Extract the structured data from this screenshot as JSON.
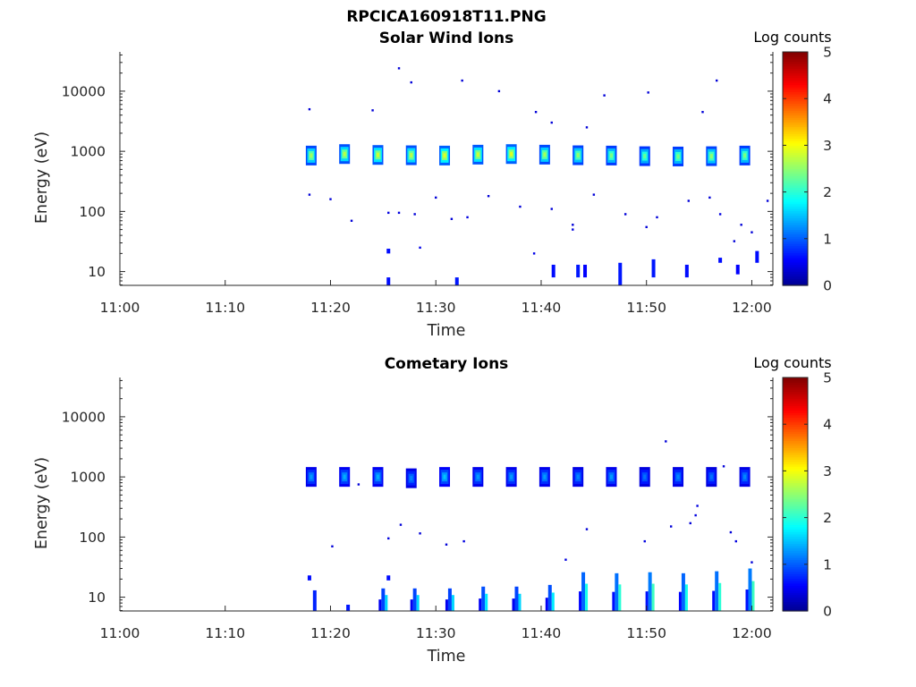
{
  "figure_title": "RPCICA160918T11.PNG",
  "colormap": [
    "#00008f",
    "#0000ff",
    "#00ffff",
    "#ffff00",
    "#ff0000",
    "#800000"
  ],
  "chart_data": [
    {
      "type": "heatmap",
      "title": "Solar Wind Ions",
      "xlabel": "Time",
      "ylabel": "Energy (eV)",
      "yscale": "log",
      "ylim": [
        5.9,
        45000
      ],
      "xlim": [
        "11:00",
        "12:02"
      ],
      "x_ticks": [
        "11:00",
        "11:10",
        "11:20",
        "11:30",
        "11:40",
        "11:50",
        "12:00"
      ],
      "y_ticks": [
        10,
        100,
        1000,
        10000
      ],
      "y_tick_labels": [
        "10",
        "100",
        "1000",
        "10000"
      ],
      "colorbar": {
        "label": "Log counts",
        "range": [
          0,
          5
        ],
        "ticks": [
          "0",
          "1",
          "2",
          "3",
          "4",
          "5"
        ]
      },
      "peak_blobs": [
        {
          "t": "11:18:10",
          "e": 850,
          "v": 2.6
        },
        {
          "t": "11:21:20",
          "e": 900,
          "v": 2.7
        },
        {
          "t": "11:24:30",
          "e": 870,
          "v": 2.8
        },
        {
          "t": "11:27:40",
          "e": 860,
          "v": 2.7
        },
        {
          "t": "11:30:50",
          "e": 850,
          "v": 2.9
        },
        {
          "t": "11:34:00",
          "e": 880,
          "v": 2.8
        },
        {
          "t": "11:37:10",
          "e": 900,
          "v": 2.9
        },
        {
          "t": "11:40:20",
          "e": 880,
          "v": 2.6
        },
        {
          "t": "11:43:30",
          "e": 860,
          "v": 2.5
        },
        {
          "t": "11:46:40",
          "e": 850,
          "v": 2.4
        },
        {
          "t": "11:49:50",
          "e": 830,
          "v": 2.3
        },
        {
          "t": "11:53:00",
          "e": 820,
          "v": 2.4
        },
        {
          "t": "11:56:10",
          "e": 830,
          "v": 2.5
        },
        {
          "t": "11:59:20",
          "e": 850,
          "v": 2.4
        }
      ],
      "low_energy_bars": [
        {
          "t": "11:25:30",
          "e1": 6,
          "e2": 8,
          "v": 1.1
        },
        {
          "t": "11:25:30",
          "e1": 20,
          "e2": 24,
          "v": 1.1
        },
        {
          "t": "11:32:00",
          "e1": 6,
          "e2": 8,
          "v": 1.2
        },
        {
          "t": "11:41:10",
          "e1": 8,
          "e2": 13,
          "v": 1.1
        },
        {
          "t": "11:43:30",
          "e1": 8,
          "e2": 13,
          "v": 1.2
        },
        {
          "t": "11:44:10",
          "e1": 8,
          "e2": 13,
          "v": 1.0
        },
        {
          "t": "11:47:30",
          "e1": 6,
          "e2": 14,
          "v": 1.2
        },
        {
          "t": "11:50:40",
          "e1": 8,
          "e2": 16,
          "v": 1.2
        },
        {
          "t": "11:53:50",
          "e1": 8,
          "e2": 13,
          "v": 1.1
        },
        {
          "t": "11:57:00",
          "e1": 14,
          "e2": 17,
          "v": 1.1
        },
        {
          "t": "11:58:40",
          "e1": 9,
          "e2": 13,
          "v": 1.0
        },
        {
          "t": "12:00:30",
          "e1": 14,
          "e2": 22,
          "v": 1.1
        }
      ],
      "scatter": [
        {
          "t": "11:26:30",
          "e": 24000,
          "v": 0.9
        },
        {
          "t": "11:27:40",
          "e": 14000,
          "v": 0.9
        },
        {
          "t": "11:32:30",
          "e": 15000,
          "v": 0.9
        },
        {
          "t": "11:36:00",
          "e": 10000,
          "v": 0.9
        },
        {
          "t": "11:39:30",
          "e": 4500,
          "v": 0.9
        },
        {
          "t": "11:46:00",
          "e": 8500,
          "v": 0.9
        },
        {
          "t": "11:50:10",
          "e": 9500,
          "v": 0.9
        },
        {
          "t": "11:55:20",
          "e": 4500,
          "v": 0.9
        },
        {
          "t": "11:56:40",
          "e": 15000,
          "v": 0.9
        },
        {
          "t": "11:18:00",
          "e": 5000,
          "v": 0.9
        },
        {
          "t": "11:18:00",
          "e": 190,
          "v": 0.9
        },
        {
          "t": "11:20:00",
          "e": 160,
          "v": 0.9
        },
        {
          "t": "11:22:00",
          "e": 70,
          "v": 0.9
        },
        {
          "t": "11:24:00",
          "e": 4800,
          "v": 0.9
        },
        {
          "t": "11:25:30",
          "e": 95,
          "v": 1.0
        },
        {
          "t": "11:26:30",
          "e": 95,
          "v": 1.0
        },
        {
          "t": "11:28:00",
          "e": 90,
          "v": 0.9
        },
        {
          "t": "11:30:00",
          "e": 170,
          "v": 0.9
        },
        {
          "t": "11:31:30",
          "e": 75,
          "v": 0.9
        },
        {
          "t": "11:33:00",
          "e": 80,
          "v": 1.0
        },
        {
          "t": "11:35:00",
          "e": 180,
          "v": 0.9
        },
        {
          "t": "11:38:00",
          "e": 120,
          "v": 0.9
        },
        {
          "t": "11:41:00",
          "e": 110,
          "v": 0.9
        },
        {
          "t": "11:43:00",
          "e": 50,
          "v": 1.0
        },
        {
          "t": "11:43:00",
          "e": 60,
          "v": 0.9
        },
        {
          "t": "11:45:00",
          "e": 190,
          "v": 0.9
        },
        {
          "t": "11:48:00",
          "e": 90,
          "v": 0.9
        },
        {
          "t": "11:50:00",
          "e": 55,
          "v": 0.9
        },
        {
          "t": "11:51:00",
          "e": 80,
          "v": 0.9
        },
        {
          "t": "11:54:00",
          "e": 150,
          "v": 0.9
        },
        {
          "t": "11:56:00",
          "e": 170,
          "v": 0.9
        },
        {
          "t": "11:57:00",
          "e": 90,
          "v": 1.0
        },
        {
          "t": "11:59:00",
          "e": 60,
          "v": 0.9
        },
        {
          "t": "12:00:00",
          "e": 45,
          "v": 0.9
        },
        {
          "t": "11:58:20",
          "e": 32,
          "v": 0.9
        },
        {
          "t": "12:01:30",
          "e": 150,
          "v": 0.9
        },
        {
          "t": "11:28:30",
          "e": 25,
          "v": 1.1
        },
        {
          "t": "11:39:20",
          "e": 20,
          "v": 1.1
        },
        {
          "t": "11:44:20",
          "e": 2500,
          "v": 0.9
        },
        {
          "t": "11:41:00",
          "e": 3000,
          "v": 0.9
        }
      ]
    },
    {
      "type": "heatmap",
      "title": "Cometary Ions",
      "xlabel": "Time",
      "ylabel": "Energy (eV)",
      "yscale": "log",
      "ylim": [
        5.9,
        45000
      ],
      "xlim": [
        "11:00",
        "12:02"
      ],
      "x_ticks": [
        "11:00",
        "11:10",
        "11:20",
        "11:30",
        "11:40",
        "11:50",
        "12:00"
      ],
      "y_ticks": [
        10,
        100,
        1000,
        10000
      ],
      "y_tick_labels": [
        "10",
        "100",
        "1000",
        "10000"
      ],
      "colorbar": {
        "label": "Log counts",
        "range": [
          0,
          5
        ],
        "ticks": [
          "0",
          "1",
          "2",
          "3",
          "4",
          "5"
        ]
      },
      "peak_blobs": [
        {
          "t": "11:18:10",
          "e": 1000,
          "v": 1.3
        },
        {
          "t": "11:21:20",
          "e": 1000,
          "v": 1.4
        },
        {
          "t": "11:24:30",
          "e": 1000,
          "v": 1.4
        },
        {
          "t": "11:27:40",
          "e": 950,
          "v": 1.2
        },
        {
          "t": "11:30:50",
          "e": 1000,
          "v": 1.5
        },
        {
          "t": "11:34:00",
          "e": 1000,
          "v": 1.3
        },
        {
          "t": "11:37:10",
          "e": 1000,
          "v": 1.3
        },
        {
          "t": "11:40:20",
          "e": 1000,
          "v": 1.3
        },
        {
          "t": "11:43:30",
          "e": 1000,
          "v": 1.2
        },
        {
          "t": "11:46:40",
          "e": 1000,
          "v": 1.3
        },
        {
          "t": "11:49:50",
          "e": 1000,
          "v": 1.1
        },
        {
          "t": "11:53:00",
          "e": 1000,
          "v": 1.2
        },
        {
          "t": "11:56:10",
          "e": 1000,
          "v": 1.1
        },
        {
          "t": "11:59:20",
          "e": 1000,
          "v": 1.2
        }
      ],
      "low_energy_bars": [
        {
          "t": "11:18:00",
          "e1": 19,
          "e2": 23,
          "v": 1.1
        },
        {
          "t": "11:18:30",
          "e1": 6,
          "e2": 13,
          "v": 1.3
        },
        {
          "t": "11:21:40",
          "e1": 6,
          "e2": 7.5,
          "v": 1.2
        },
        {
          "t": "11:25:00",
          "e1": 6,
          "e2": 14,
          "v": 1.6
        },
        {
          "t": "11:25:30",
          "e1": 19,
          "e2": 23,
          "v": 1.1
        },
        {
          "t": "11:28:00",
          "e1": 6,
          "e2": 14,
          "v": 1.6
        },
        {
          "t": "11:31:20",
          "e1": 6,
          "e2": 14,
          "v": 1.6
        },
        {
          "t": "11:34:30",
          "e1": 6,
          "e2": 15,
          "v": 1.7
        },
        {
          "t": "11:37:40",
          "e1": 6,
          "e2": 15,
          "v": 1.6
        },
        {
          "t": "11:40:50",
          "e1": 6,
          "e2": 16,
          "v": 1.7
        },
        {
          "t": "11:44:00",
          "e1": 6,
          "e2": 26,
          "v": 1.9
        },
        {
          "t": "11:47:10",
          "e1": 6,
          "e2": 25,
          "v": 2.0
        },
        {
          "t": "11:50:20",
          "e1": 6,
          "e2": 26,
          "v": 2.1
        },
        {
          "t": "11:53:30",
          "e1": 6,
          "e2": 25,
          "v": 1.9
        },
        {
          "t": "11:56:40",
          "e1": 6,
          "e2": 27,
          "v": 2.0
        },
        {
          "t": "11:59:50",
          "e1": 6,
          "e2": 30,
          "v": 2.1
        }
      ],
      "scatter": [
        {
          "t": "11:20:10",
          "e": 70,
          "v": 0.9
        },
        {
          "t": "11:22:40",
          "e": 750,
          "v": 0.9
        },
        {
          "t": "11:25:30",
          "e": 95,
          "v": 1.0
        },
        {
          "t": "11:26:40",
          "e": 160,
          "v": 0.9
        },
        {
          "t": "11:28:30",
          "e": 115,
          "v": 0.9
        },
        {
          "t": "11:31:00",
          "e": 75,
          "v": 0.9
        },
        {
          "t": "11:32:40",
          "e": 85,
          "v": 1.0
        },
        {
          "t": "11:42:20",
          "e": 42,
          "v": 1.0
        },
        {
          "t": "11:44:20",
          "e": 135,
          "v": 0.9
        },
        {
          "t": "11:49:50",
          "e": 85,
          "v": 1.0
        },
        {
          "t": "11:51:50",
          "e": 3900,
          "v": 0.9
        },
        {
          "t": "11:52:20",
          "e": 150,
          "v": 0.9
        },
        {
          "t": "11:54:10",
          "e": 170,
          "v": 0.9
        },
        {
          "t": "11:54:40",
          "e": 230,
          "v": 1.0
        },
        {
          "t": "11:54:50",
          "e": 330,
          "v": 1.0
        },
        {
          "t": "11:57:20",
          "e": 1500,
          "v": 0.9
        },
        {
          "t": "11:58:00",
          "e": 120,
          "v": 0.9
        },
        {
          "t": "11:58:30",
          "e": 85,
          "v": 1.0
        },
        {
          "t": "12:00:00",
          "e": 38,
          "v": 0.9
        }
      ]
    }
  ]
}
